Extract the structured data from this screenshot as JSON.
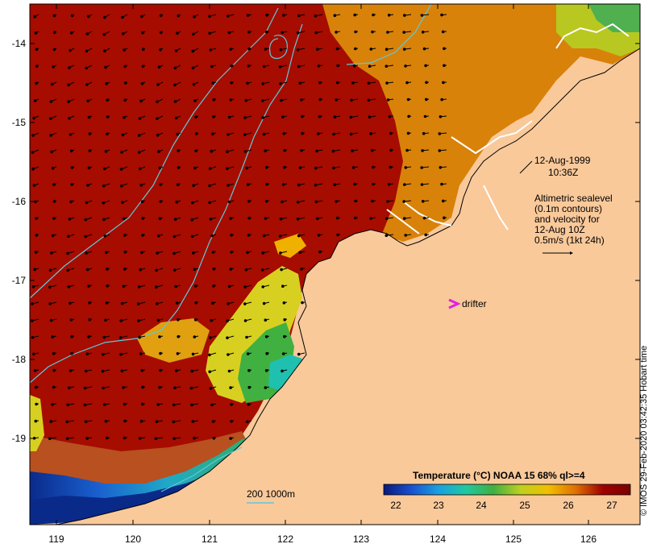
{
  "map": {
    "lon_ticks": [
      "119",
      "120",
      "121",
      "122",
      "123",
      "124",
      "125",
      "126"
    ],
    "lat_ticks": [
      "-14",
      "-15",
      "-16",
      "-17",
      "-18",
      "-19"
    ],
    "date": "12-Aug-1999",
    "time": "10:36Z",
    "info_lines": [
      "Altimetric sealevel",
      "(0.1m contours)",
      "and velocity for",
      "12-Aug 10Z",
      "0.5m/s (1kt 24h)"
    ],
    "drifter_label": "drifter",
    "depth_label": "200  1000m",
    "credit": "© IMOS 29-Feb-2020 03:42:35 Hobart time",
    "colorbar": {
      "title": "Temperature (°C) NOAA 15 68% ql>=4",
      "ticks": [
        "22",
        "23",
        "24",
        "25",
        "26",
        "27"
      ],
      "stops": [
        "#0a1a7a",
        "#1a50d0",
        "#1aa0e0",
        "#20c8a0",
        "#40b040",
        "#c0d020",
        "#f0c000",
        "#e07000",
        "#a00000",
        "#7a0000"
      ]
    },
    "colors": {
      "land": "#f9c99a",
      "warm_sea": "#a60c00",
      "orange_sea": "#d8820a",
      "contour": "#60c8d8",
      "drifter": "#e020e0"
    }
  }
}
